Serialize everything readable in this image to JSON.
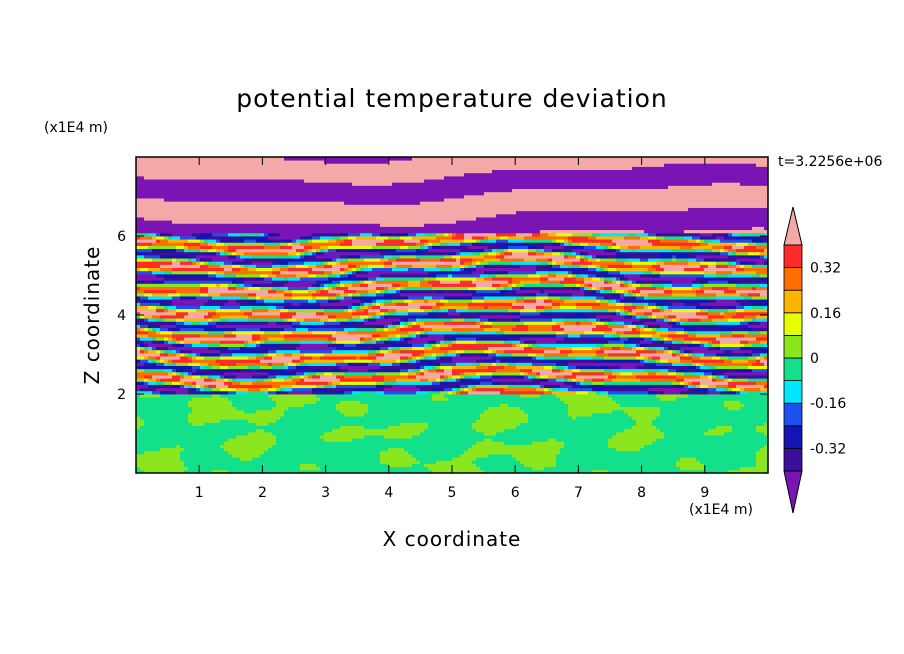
{
  "chart_data": {
    "type": "heatmap",
    "title": "potential temperature deviation",
    "xlabel": "X coordinate",
    "ylabel": "Z coordinate",
    "x_unit": "(x1E4 m)",
    "y_unit": "(x1E4 m)",
    "time_label": "t=3.2256e+06",
    "xlim": [
      0,
      10
    ],
    "ylim": [
      0,
      8
    ],
    "x_ticks": [
      1,
      2,
      3,
      4,
      5,
      6,
      7,
      8,
      9
    ],
    "y_ticks": [
      2,
      4,
      6
    ],
    "colorbar": {
      "levels": [
        -0.4,
        -0.32,
        -0.24,
        -0.16,
        -0.08,
        0,
        0.08,
        0.16,
        0.24,
        0.32,
        0.4
      ],
      "tick_values": [
        0.32,
        0.16,
        0,
        -0.16,
        -0.32
      ],
      "tick_labels": [
        "0.32",
        "0.16",
        "0",
        "-0.16",
        "-0.32"
      ],
      "under_color": "#7a14b4",
      "over_color": "#f4a8a8",
      "colors": [
        "#3a0f9a",
        "#1414b4",
        "#1e50f0",
        "#00e6ff",
        "#12e08a",
        "#8ce61e",
        "#e6ff00",
        "#ffb400",
        "#ff6e00",
        "#ff2a2a"
      ]
    },
    "layers": [
      {
        "z_range": [
          0,
          2
        ],
        "description_values": [
          -0.08,
          0.08
        ]
      },
      {
        "z_range": [
          2,
          6
        ],
        "description_values": [
          -0.4,
          0.4
        ]
      },
      {
        "z_range": [
          6,
          8
        ],
        "description_values": [
          -0.4,
          0.4
        ]
      }
    ]
  }
}
